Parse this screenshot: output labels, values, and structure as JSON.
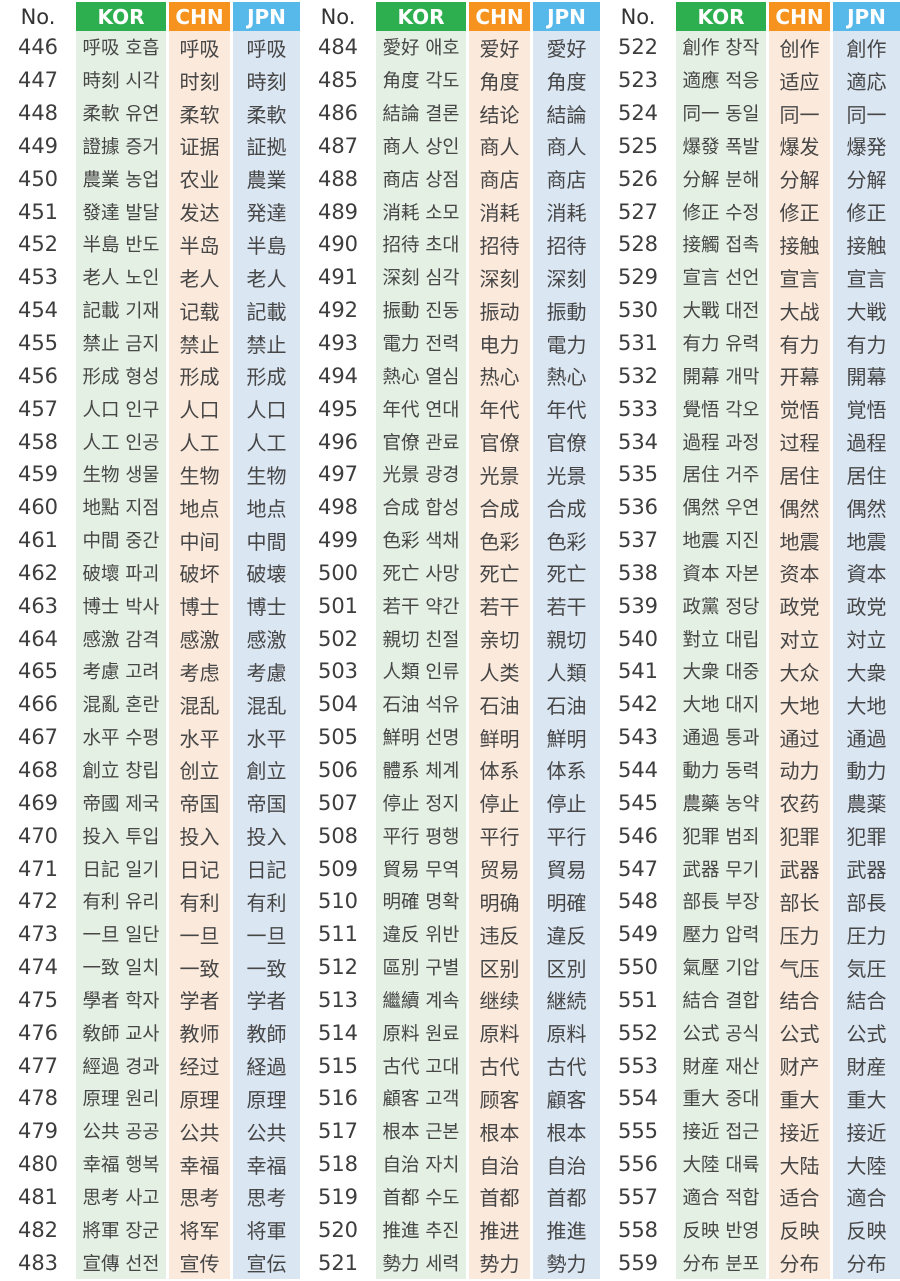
{
  "columns": {
    "no": "No.",
    "kor": "KOR",
    "chn": "CHN",
    "jpn": "JPN"
  },
  "colors": {
    "kor_header": "#2daf4f",
    "chn_header": "#f6921e",
    "jpn_header": "#57b8ea",
    "kor_band": "#e4f0e3",
    "chn_band": "#fbe9dc",
    "jpn_band": "#dbe6f3",
    "text": "#464646"
  },
  "tables": [
    {
      "rows": [
        {
          "no": "446",
          "kor": "呼吸 호흡",
          "chn": "呼吸",
          "jpn": "呼吸"
        },
        {
          "no": "447",
          "kor": "時刻 시각",
          "chn": "时刻",
          "jpn": "時刻"
        },
        {
          "no": "448",
          "kor": "柔軟 유연",
          "chn": "柔软",
          "jpn": "柔軟"
        },
        {
          "no": "449",
          "kor": "證據 증거",
          "chn": "证据",
          "jpn": "証拠"
        },
        {
          "no": "450",
          "kor": "農業 농업",
          "chn": "农业",
          "jpn": "農業"
        },
        {
          "no": "451",
          "kor": "發達 발달",
          "chn": "发达",
          "jpn": "発達"
        },
        {
          "no": "452",
          "kor": "半島 반도",
          "chn": "半岛",
          "jpn": "半島"
        },
        {
          "no": "453",
          "kor": "老人 노인",
          "chn": "老人",
          "jpn": "老人"
        },
        {
          "no": "454",
          "kor": "記載 기재",
          "chn": "记载",
          "jpn": "記載"
        },
        {
          "no": "455",
          "kor": "禁止 금지",
          "chn": "禁止",
          "jpn": "禁止"
        },
        {
          "no": "456",
          "kor": "形成 형성",
          "chn": "形成",
          "jpn": "形成"
        },
        {
          "no": "457",
          "kor": "人口 인구",
          "chn": "人口",
          "jpn": "人口"
        },
        {
          "no": "458",
          "kor": "人工 인공",
          "chn": "人工",
          "jpn": "人工"
        },
        {
          "no": "459",
          "kor": "生物 생물",
          "chn": "生物",
          "jpn": "生物"
        },
        {
          "no": "460",
          "kor": "地點 지점",
          "chn": "地点",
          "jpn": "地点"
        },
        {
          "no": "461",
          "kor": "中間 중간",
          "chn": "中间",
          "jpn": "中間"
        },
        {
          "no": "462",
          "kor": "破壞 파괴",
          "chn": "破坏",
          "jpn": "破壊"
        },
        {
          "no": "463",
          "kor": "博士 박사",
          "chn": "博士",
          "jpn": "博士"
        },
        {
          "no": "464",
          "kor": "感激 감격",
          "chn": "感激",
          "jpn": "感激"
        },
        {
          "no": "465",
          "kor": "考慮 고려",
          "chn": "考虑",
          "jpn": "考慮"
        },
        {
          "no": "466",
          "kor": "混亂 혼란",
          "chn": "混乱",
          "jpn": "混乱"
        },
        {
          "no": "467",
          "kor": "水平 수평",
          "chn": "水平",
          "jpn": "水平"
        },
        {
          "no": "468",
          "kor": "創立 창립",
          "chn": "创立",
          "jpn": "創立"
        },
        {
          "no": "469",
          "kor": "帝國 제국",
          "chn": "帝国",
          "jpn": "帝国"
        },
        {
          "no": "470",
          "kor": "投入 투입",
          "chn": "投入",
          "jpn": "投入"
        },
        {
          "no": "471",
          "kor": "日記 일기",
          "chn": "日记",
          "jpn": "日記"
        },
        {
          "no": "472",
          "kor": "有利 유리",
          "chn": "有利",
          "jpn": "有利"
        },
        {
          "no": "473",
          "kor": "一旦 일단",
          "chn": "一旦",
          "jpn": "一旦"
        },
        {
          "no": "474",
          "kor": "一致 일치",
          "chn": "一致",
          "jpn": "一致"
        },
        {
          "no": "475",
          "kor": "學者 학자",
          "chn": "学者",
          "jpn": "学者"
        },
        {
          "no": "476",
          "kor": "敎師 교사",
          "chn": "教师",
          "jpn": "教師"
        },
        {
          "no": "477",
          "kor": "經過 경과",
          "chn": "经过",
          "jpn": "経過"
        },
        {
          "no": "478",
          "kor": "原理 원리",
          "chn": "原理",
          "jpn": "原理"
        },
        {
          "no": "479",
          "kor": "公共 공공",
          "chn": "公共",
          "jpn": "公共"
        },
        {
          "no": "480",
          "kor": "幸福 행복",
          "chn": "幸福",
          "jpn": "幸福"
        },
        {
          "no": "481",
          "kor": "思考 사고",
          "chn": "思考",
          "jpn": "思考"
        },
        {
          "no": "482",
          "kor": "將軍 장군",
          "chn": "将军",
          "jpn": "将軍"
        },
        {
          "no": "483",
          "kor": "宣傳 선전",
          "chn": "宣传",
          "jpn": "宣伝"
        }
      ]
    },
    {
      "rows": [
        {
          "no": "484",
          "kor": "愛好 애호",
          "chn": "爱好",
          "jpn": "愛好"
        },
        {
          "no": "485",
          "kor": "角度 각도",
          "chn": "角度",
          "jpn": "角度"
        },
        {
          "no": "486",
          "kor": "結論 결론",
          "chn": "结论",
          "jpn": "結論"
        },
        {
          "no": "487",
          "kor": "商人 상인",
          "chn": "商人",
          "jpn": "商人"
        },
        {
          "no": "488",
          "kor": "商店 상점",
          "chn": "商店",
          "jpn": "商店"
        },
        {
          "no": "489",
          "kor": "消耗 소모",
          "chn": "消耗",
          "jpn": "消耗"
        },
        {
          "no": "490",
          "kor": "招待 초대",
          "chn": "招待",
          "jpn": "招待"
        },
        {
          "no": "491",
          "kor": "深刻 심각",
          "chn": "深刻",
          "jpn": "深刻"
        },
        {
          "no": "492",
          "kor": "振動 진동",
          "chn": "振动",
          "jpn": "振動"
        },
        {
          "no": "493",
          "kor": "電力 전력",
          "chn": "电力",
          "jpn": "電力"
        },
        {
          "no": "494",
          "kor": "熱心 열심",
          "chn": "热心",
          "jpn": "熱心"
        },
        {
          "no": "495",
          "kor": "年代 연대",
          "chn": "年代",
          "jpn": "年代"
        },
        {
          "no": "496",
          "kor": "官僚 관료",
          "chn": "官僚",
          "jpn": "官僚"
        },
        {
          "no": "497",
          "kor": "光景 광경",
          "chn": "光景",
          "jpn": "光景"
        },
        {
          "no": "498",
          "kor": "合成 합성",
          "chn": "合成",
          "jpn": "合成"
        },
        {
          "no": "499",
          "kor": "色彩 색채",
          "chn": "色彩",
          "jpn": "色彩"
        },
        {
          "no": "500",
          "kor": "死亡 사망",
          "chn": "死亡",
          "jpn": "死亡"
        },
        {
          "no": "501",
          "kor": "若干 약간",
          "chn": "若干",
          "jpn": "若干"
        },
        {
          "no": "502",
          "kor": "親切 친절",
          "chn": "亲切",
          "jpn": "親切"
        },
        {
          "no": "503",
          "kor": "人類 인류",
          "chn": "人类",
          "jpn": "人類"
        },
        {
          "no": "504",
          "kor": "石油 석유",
          "chn": "石油",
          "jpn": "石油"
        },
        {
          "no": "505",
          "kor": "鮮明 선명",
          "chn": "鲜明",
          "jpn": "鮮明"
        },
        {
          "no": "506",
          "kor": "體系 체계",
          "chn": "体系",
          "jpn": "体系"
        },
        {
          "no": "507",
          "kor": "停止 정지",
          "chn": "停止",
          "jpn": "停止"
        },
        {
          "no": "508",
          "kor": "平行 평행",
          "chn": "平行",
          "jpn": "平行"
        },
        {
          "no": "509",
          "kor": "貿易 무역",
          "chn": "贸易",
          "jpn": "貿易"
        },
        {
          "no": "510",
          "kor": "明確 명확",
          "chn": "明确",
          "jpn": "明確"
        },
        {
          "no": "511",
          "kor": "違反 위반",
          "chn": "违反",
          "jpn": "違反"
        },
        {
          "no": "512",
          "kor": "區別 구별",
          "chn": "区别",
          "jpn": "区別"
        },
        {
          "no": "513",
          "kor": "繼續 계속",
          "chn": "继续",
          "jpn": "継続"
        },
        {
          "no": "514",
          "kor": "原料 원료",
          "chn": "原料",
          "jpn": "原料"
        },
        {
          "no": "515",
          "kor": "古代 고대",
          "chn": "古代",
          "jpn": "古代"
        },
        {
          "no": "516",
          "kor": "顧客 고객",
          "chn": "顾客",
          "jpn": "顧客"
        },
        {
          "no": "517",
          "kor": "根本 근본",
          "chn": "根本",
          "jpn": "根本"
        },
        {
          "no": "518",
          "kor": "自治 자치",
          "chn": "自治",
          "jpn": "自治"
        },
        {
          "no": "519",
          "kor": "首都 수도",
          "chn": "首都",
          "jpn": "首都"
        },
        {
          "no": "520",
          "kor": "推進 추진",
          "chn": "推进",
          "jpn": "推進"
        },
        {
          "no": "521",
          "kor": "勢力 세력",
          "chn": "势力",
          "jpn": "勢力"
        }
      ]
    },
    {
      "rows": [
        {
          "no": "522",
          "kor": "創作 창작",
          "chn": "创作",
          "jpn": "創作"
        },
        {
          "no": "523",
          "kor": "適應 적응",
          "chn": "适应",
          "jpn": "適応"
        },
        {
          "no": "524",
          "kor": "同一 동일",
          "chn": "同一",
          "jpn": "同一"
        },
        {
          "no": "525",
          "kor": "爆發 폭발",
          "chn": "爆发",
          "jpn": "爆発"
        },
        {
          "no": "526",
          "kor": "分解 분해",
          "chn": "分解",
          "jpn": "分解"
        },
        {
          "no": "527",
          "kor": "修正 수정",
          "chn": "修正",
          "jpn": "修正"
        },
        {
          "no": "528",
          "kor": "接觸 접촉",
          "chn": "接触",
          "jpn": "接触"
        },
        {
          "no": "529",
          "kor": "宣言 선언",
          "chn": "宣言",
          "jpn": "宣言"
        },
        {
          "no": "530",
          "kor": "大戰 대전",
          "chn": "大战",
          "jpn": "大戦"
        },
        {
          "no": "531",
          "kor": "有力 유력",
          "chn": "有力",
          "jpn": "有力"
        },
        {
          "no": "532",
          "kor": "開幕 개막",
          "chn": "开幕",
          "jpn": "開幕"
        },
        {
          "no": "533",
          "kor": "覺悟 각오",
          "chn": "觉悟",
          "jpn": "覚悟"
        },
        {
          "no": "534",
          "kor": "過程 과정",
          "chn": "过程",
          "jpn": "過程"
        },
        {
          "no": "535",
          "kor": "居住 거주",
          "chn": "居住",
          "jpn": "居住"
        },
        {
          "no": "536",
          "kor": "偶然 우연",
          "chn": "偶然",
          "jpn": "偶然"
        },
        {
          "no": "537",
          "kor": "地震 지진",
          "chn": "地震",
          "jpn": "地震"
        },
        {
          "no": "538",
          "kor": "資本 자본",
          "chn": "资本",
          "jpn": "資本"
        },
        {
          "no": "539",
          "kor": "政黨 정당",
          "chn": "政党",
          "jpn": "政党"
        },
        {
          "no": "540",
          "kor": "對立 대립",
          "chn": "对立",
          "jpn": "対立"
        },
        {
          "no": "541",
          "kor": "大衆 대중",
          "chn": "大众",
          "jpn": "大衆"
        },
        {
          "no": "542",
          "kor": "大地 대지",
          "chn": "大地",
          "jpn": "大地"
        },
        {
          "no": "543",
          "kor": "通過 통과",
          "chn": "通过",
          "jpn": "通過"
        },
        {
          "no": "544",
          "kor": "動力 동력",
          "chn": "动力",
          "jpn": "動力"
        },
        {
          "no": "545",
          "kor": "農藥 농약",
          "chn": "农药",
          "jpn": "農薬"
        },
        {
          "no": "546",
          "kor": "犯罪 범죄",
          "chn": "犯罪",
          "jpn": "犯罪"
        },
        {
          "no": "547",
          "kor": "武器 무기",
          "chn": "武器",
          "jpn": "武器"
        },
        {
          "no": "548",
          "kor": "部長 부장",
          "chn": "部长",
          "jpn": "部長"
        },
        {
          "no": "549",
          "kor": "壓力 압력",
          "chn": "压力",
          "jpn": "圧力"
        },
        {
          "no": "550",
          "kor": "氣壓 기압",
          "chn": "气压",
          "jpn": "気圧"
        },
        {
          "no": "551",
          "kor": "結合 결합",
          "chn": "结合",
          "jpn": "結合"
        },
        {
          "no": "552",
          "kor": "公式 공식",
          "chn": "公式",
          "jpn": "公式"
        },
        {
          "no": "553",
          "kor": "財産 재산",
          "chn": "财产",
          "jpn": "財産"
        },
        {
          "no": "554",
          "kor": "重大 중대",
          "chn": "重大",
          "jpn": "重大"
        },
        {
          "no": "555",
          "kor": "接近 접근",
          "chn": "接近",
          "jpn": "接近"
        },
        {
          "no": "556",
          "kor": "大陸 대륙",
          "chn": "大陆",
          "jpn": "大陸"
        },
        {
          "no": "557",
          "kor": "適合 적합",
          "chn": "适合",
          "jpn": "適合"
        },
        {
          "no": "558",
          "kor": "反映 반영",
          "chn": "反映",
          "jpn": "反映"
        },
        {
          "no": "559",
          "kor": "分布 분포",
          "chn": "分布",
          "jpn": "分布"
        }
      ]
    }
  ]
}
